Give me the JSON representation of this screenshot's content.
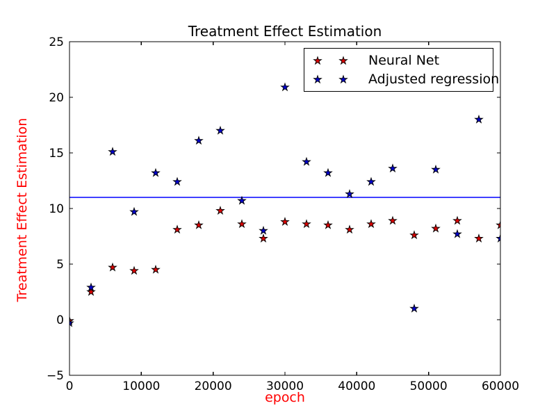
{
  "chart_data": {
    "type": "scatter",
    "title": "Treatment Effect Estimation",
    "xlabel": "epoch",
    "ylabel": "Treatment Effect Estimation",
    "xlim": [
      0,
      60000
    ],
    "ylim": [
      -5,
      25
    ],
    "x_tick_labels": [
      "0",
      "10000",
      "20000",
      "30000",
      "40000",
      "50000",
      "60000"
    ],
    "x_tick_values": [
      0,
      10000,
      20000,
      30000,
      40000,
      50000,
      60000
    ],
    "y_tick_labels": [
      "−5",
      "0",
      "5",
      "10",
      "15",
      "20",
      "25"
    ],
    "y_tick_values": [
      -5,
      0,
      5,
      10,
      15,
      20,
      25
    ],
    "grid": false,
    "legend_position": "upper-center-right",
    "hline": {
      "y": 11.0,
      "color": "#0000ff"
    },
    "x": [
      0,
      3000,
      6000,
      9000,
      12000,
      15000,
      18000,
      21000,
      24000,
      27000,
      30000,
      33000,
      36000,
      39000,
      42000,
      45000,
      48000,
      51000,
      54000,
      57000,
      60000
    ],
    "series": [
      {
        "name": "Neural Net",
        "marker": "star",
        "color": "#dd0000",
        "values": [
          -0.1,
          2.5,
          4.7,
          4.4,
          4.5,
          8.1,
          8.5,
          9.8,
          8.6,
          7.3,
          8.8,
          8.6,
          8.5,
          8.1,
          8.6,
          8.9,
          7.6,
          8.2,
          8.9,
          7.3,
          8.5
        ]
      },
      {
        "name": "Adjusted regression",
        "marker": "star",
        "color": "#0000cd",
        "values": [
          -0.3,
          2.9,
          15.1,
          9.7,
          13.2,
          12.4,
          16.1,
          17.0,
          10.7,
          8.0,
          20.9,
          14.2,
          13.2,
          11.3,
          12.4,
          13.6,
          1.0,
          13.5,
          7.7,
          18.0,
          7.3
        ]
      }
    ],
    "legend": [
      {
        "label": "Neural Net",
        "color": "#dd0000"
      },
      {
        "label": "Adjusted regression",
        "color": "#0000cd"
      }
    ],
    "colors": {
      "axis_label": "#ff0000",
      "title_text": "#000000",
      "tick_text": "#000000",
      "spine": "#000000",
      "reference_line": "#0000ff",
      "background": "#ffffff"
    }
  }
}
